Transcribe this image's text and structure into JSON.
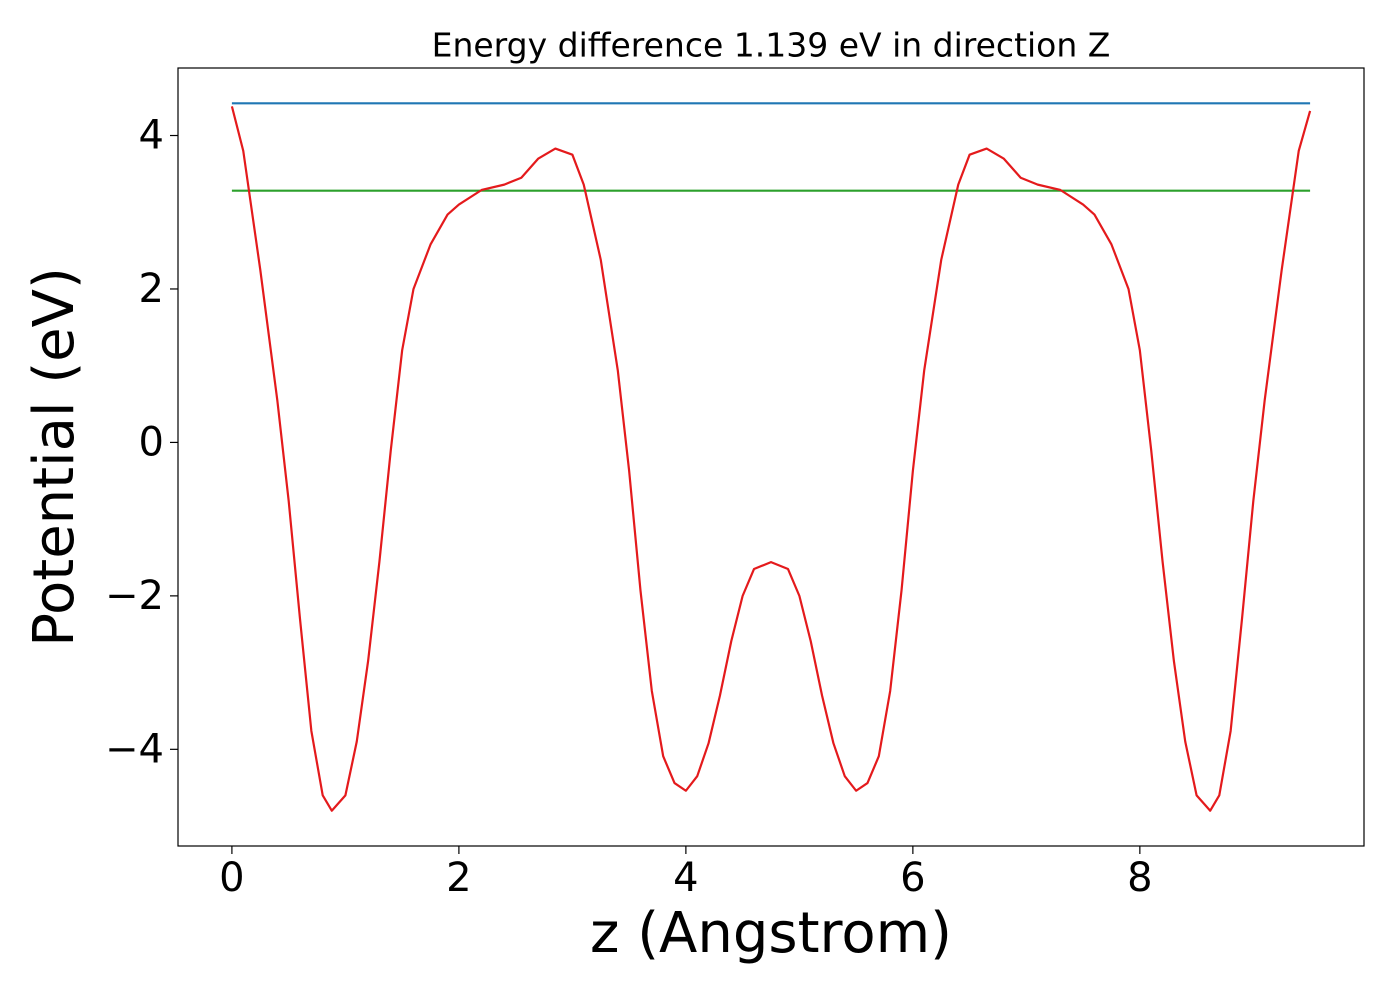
{
  "chart_data": {
    "type": "line",
    "title": "Energy difference 1.139 eV in direction Z",
    "x_label": "z (Angstrom)",
    "y_label": "Potential (eV)",
    "xlim": [
      -0.475,
      9.975
    ],
    "ylim": [
      -5.26,
      4.88
    ],
    "xticks": [
      0,
      2,
      4,
      6,
      8
    ],
    "yticks": [
      {
        "value": -4,
        "label": "−4"
      },
      {
        "value": -2,
        "label": "−2"
      },
      0,
      2,
      4
    ],
    "grid": false,
    "series": [
      {
        "color": "#1f77b4",
        "x": [
          0,
          9.5
        ],
        "values": [
          4.42,
          4.42
        ]
      },
      {
        "color": "#2ca02c",
        "x": [
          0,
          9.5
        ],
        "values": [
          3.281,
          3.281
        ]
      },
      {
        "color": "#e41a1c",
        "x": [
          0,
          0.1,
          0.25,
          0.4,
          0.5,
          0.6,
          0.7,
          0.8,
          0.88,
          1.0,
          1.1,
          1.2,
          1.3,
          1.4,
          1.5,
          1.6,
          1.75,
          1.9,
          2.0,
          2.2,
          2.4,
          2.55,
          2.7,
          2.85,
          3.0,
          3.1,
          3.25,
          3.4,
          3.5,
          3.6,
          3.7,
          3.8,
          3.9,
          4.0,
          4.1,
          4.2,
          4.3,
          4.4,
          4.5,
          4.6,
          4.75,
          4.9,
          5.0,
          5.1,
          5.2,
          5.3,
          5.4,
          5.5,
          5.6,
          5.7,
          5.8,
          5.9,
          6.0,
          6.1,
          6.25,
          6.4,
          6.5,
          6.65,
          6.8,
          6.95,
          7.1,
          7.3,
          7.5,
          7.6,
          7.75,
          7.9,
          8.0,
          8.1,
          8.2,
          8.3,
          8.4,
          8.5,
          8.62,
          8.7,
          8.8,
          8.9,
          9.0,
          9.1,
          9.25,
          9.4,
          9.5
        ],
        "values": [
          4.38,
          3.8,
          2.25,
          0.55,
          -0.76,
          -2.3,
          -3.76,
          -4.6,
          -4.8,
          -4.6,
          -3.9,
          -2.85,
          -1.55,
          -0.1,
          1.2,
          2.0,
          2.58,
          2.97,
          3.1,
          3.29,
          3.36,
          3.45,
          3.7,
          3.83,
          3.75,
          3.36,
          2.38,
          0.94,
          -0.37,
          -1.93,
          -3.24,
          -4.09,
          -4.44,
          -4.54,
          -4.35,
          -3.92,
          -3.3,
          -2.59,
          -2.0,
          -1.65,
          -1.56,
          -1.65,
          -2.0,
          -2.59,
          -3.3,
          -3.92,
          -4.35,
          -4.54,
          -4.44,
          -4.09,
          -3.24,
          -1.93,
          -0.37,
          0.94,
          2.38,
          3.36,
          3.75,
          3.83,
          3.7,
          3.45,
          3.36,
          3.29,
          3.1,
          2.97,
          2.58,
          2.0,
          1.2,
          -0.1,
          -1.55,
          -2.85,
          -3.9,
          -4.6,
          -4.8,
          -4.6,
          -3.76,
          -2.3,
          -0.76,
          0.55,
          2.25,
          3.8,
          4.32
        ]
      }
    ]
  }
}
